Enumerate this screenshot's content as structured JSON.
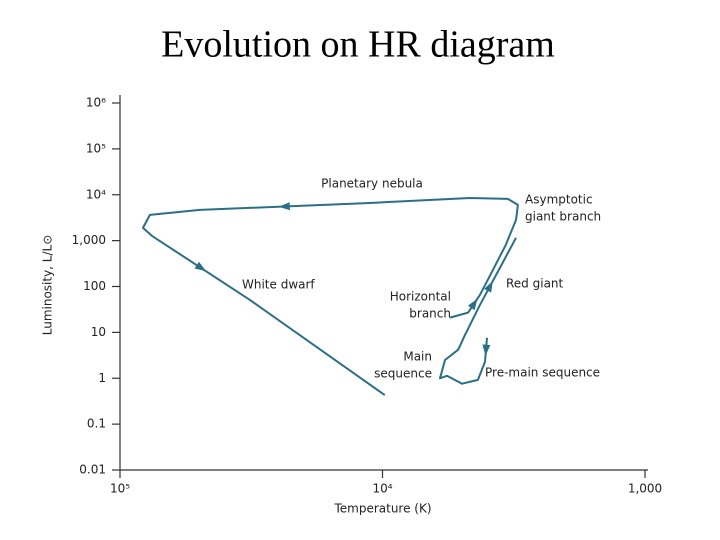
{
  "title": "Evolution on HR diagram",
  "chart_data": {
    "type": "line",
    "x_label": "Temperature (K)",
    "y_label": "Luminosity, L/L⊙",
    "xscale": "log",
    "yscale": "log",
    "xlim": [
      100000,
      1000
    ],
    "ylim": [
      0.01,
      1000000
    ],
    "xticks": [
      {
        "value": 100000,
        "label": "10⁵"
      },
      {
        "value": 10000,
        "label": "10⁴"
      },
      {
        "value": 1000,
        "label": "1,000"
      }
    ],
    "yticks": [
      {
        "value": 1000000,
        "label": "10⁶"
      },
      {
        "value": 100000,
        "label": "10⁵"
      },
      {
        "value": 10000,
        "label": "10⁴"
      },
      {
        "value": 1000,
        "label": "1,000"
      },
      100,
      10,
      1,
      0.1,
      0.01
    ],
    "series": [
      {
        "color": "#2a6f86",
        "x": [
          4000,
          4070,
          4330,
          4980,
          5680,
          6040,
          5780,
          5150,
          4850,
          4250,
          3570,
          3100,
          null,
          5530,
          4720,
          4250,
          3830,
          3390,
          3100,
          3050,
          3330,
          4640,
          11200,
          49600,
          76900,
          81700,
          75500,
          32000,
          9800
        ],
        "values": [
          7.6,
          2.3,
          0.92,
          0.76,
          1.13,
          1.0,
          2.5,
          4.2,
          8.8,
          40,
          254,
          1150,
          null,
          21,
          27,
          66,
          208,
          805,
          2830,
          6000,
          8100,
          8500,
          6620,
          4670,
          3630,
          1890,
          1270,
          51,
          0.43
        ]
      }
    ],
    "annotations": [
      [
        "Planetary nebula"
      ],
      [
        "Asymptotic",
        "giant branch"
      ],
      [
        "White dwarf"
      ],
      [
        "Horizontal",
        "branch"
      ],
      [
        "Red giant"
      ],
      [
        "Main",
        "sequence"
      ],
      [
        "Pre-main sequence"
      ]
    ]
  }
}
